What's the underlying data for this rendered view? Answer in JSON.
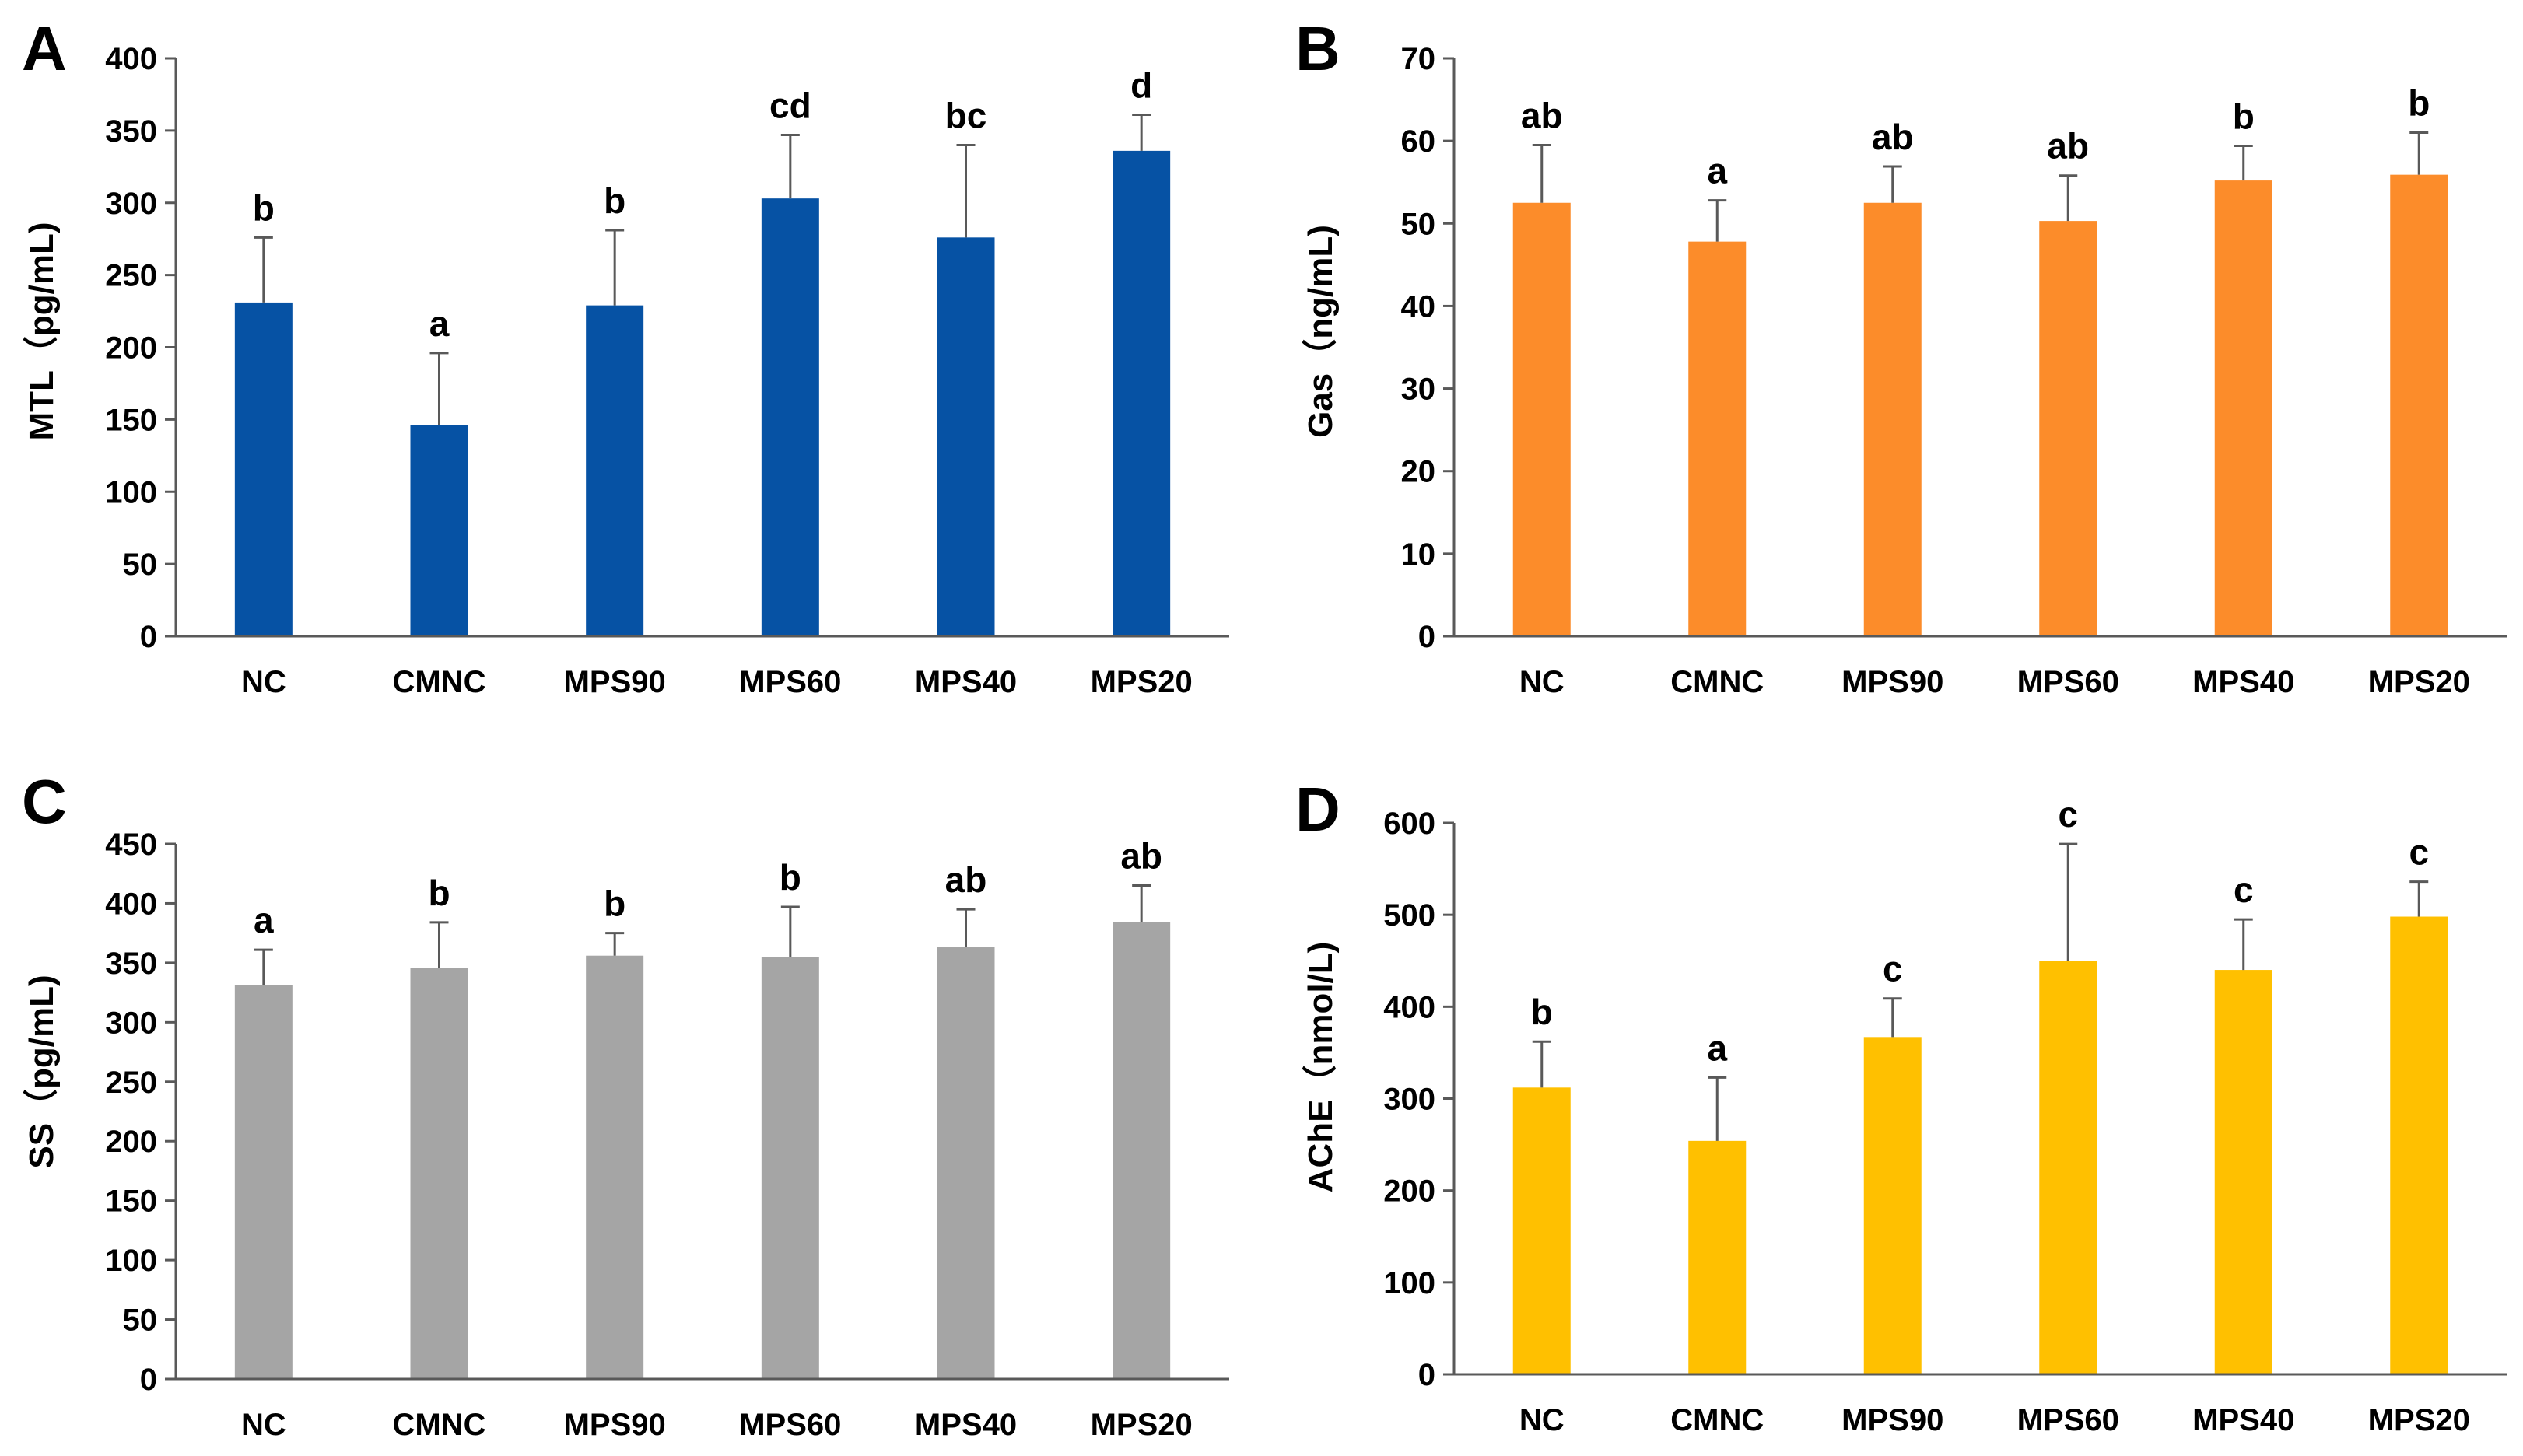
{
  "chart_data": [
    {
      "panel": "A",
      "type": "bar",
      "color": "#0652A4",
      "ylabel": "MTL（pg/mL)",
      "ylim": [
        0,
        400
      ],
      "yticks": [
        0,
        50,
        100,
        150,
        200,
        250,
        300,
        350,
        400
      ],
      "categories": [
        "NC",
        "CMNC",
        "MPS90",
        "MPS60",
        "MPS40",
        "MPS20"
      ],
      "values": [
        231,
        146,
        229,
        303,
        276,
        336
      ],
      "errors": [
        45,
        50,
        52,
        44,
        64,
        25
      ],
      "significance": [
        "b",
        "a",
        "b",
        "cd",
        "bc",
        "d"
      ]
    },
    {
      "panel": "B",
      "type": "bar",
      "color": "#FC8C2A",
      "ylabel": "Gas（ng/mL)",
      "ylim": [
        0,
        70
      ],
      "yticks": [
        0,
        10,
        20,
        30,
        40,
        50,
        60,
        70
      ],
      "categories": [
        "NC",
        "CMNC",
        "MPS90",
        "MPS60",
        "MPS40",
        "MPS20"
      ],
      "values": [
        52.5,
        47.8,
        52.5,
        50.3,
        55.2,
        55.9
      ],
      "errors": [
        7.0,
        5.0,
        4.4,
        5.5,
        4.2,
        5.1
      ],
      "significance": [
        "ab",
        "a",
        "ab",
        "ab",
        "b",
        "b"
      ]
    },
    {
      "panel": "C",
      "type": "bar",
      "color": "#A5A5A5",
      "ylabel": "SS（pg/mL)",
      "ylim": [
        0,
        450
      ],
      "yticks": [
        0,
        50,
        100,
        150,
        200,
        250,
        300,
        350,
        400,
        450
      ],
      "categories": [
        "NC",
        "CMNC",
        "MPS90",
        "MPS60",
        "MPS40",
        "MPS20"
      ],
      "values": [
        331,
        346,
        356,
        355,
        363,
        384
      ],
      "errors": [
        30,
        38,
        19,
        42,
        32,
        31
      ],
      "significance": [
        "a",
        "b",
        "b",
        "b",
        "ab",
        "ab"
      ]
    },
    {
      "panel": "D",
      "type": "bar",
      "color": "#FFC000",
      "ylabel": "AChE（nmol/L)",
      "ylim": [
        0,
        600
      ],
      "yticks": [
        0,
        100,
        200,
        300,
        400,
        500,
        600
      ],
      "categories": [
        "NC",
        "CMNC",
        "MPS90",
        "MPS60",
        "MPS40",
        "MPS20"
      ],
      "values": [
        312,
        254,
        367,
        450,
        440,
        498
      ],
      "errors": [
        50,
        69,
        42,
        127,
        55,
        38
      ],
      "significance": [
        "b",
        "a",
        "c",
        "c",
        "c",
        "c"
      ]
    }
  ]
}
